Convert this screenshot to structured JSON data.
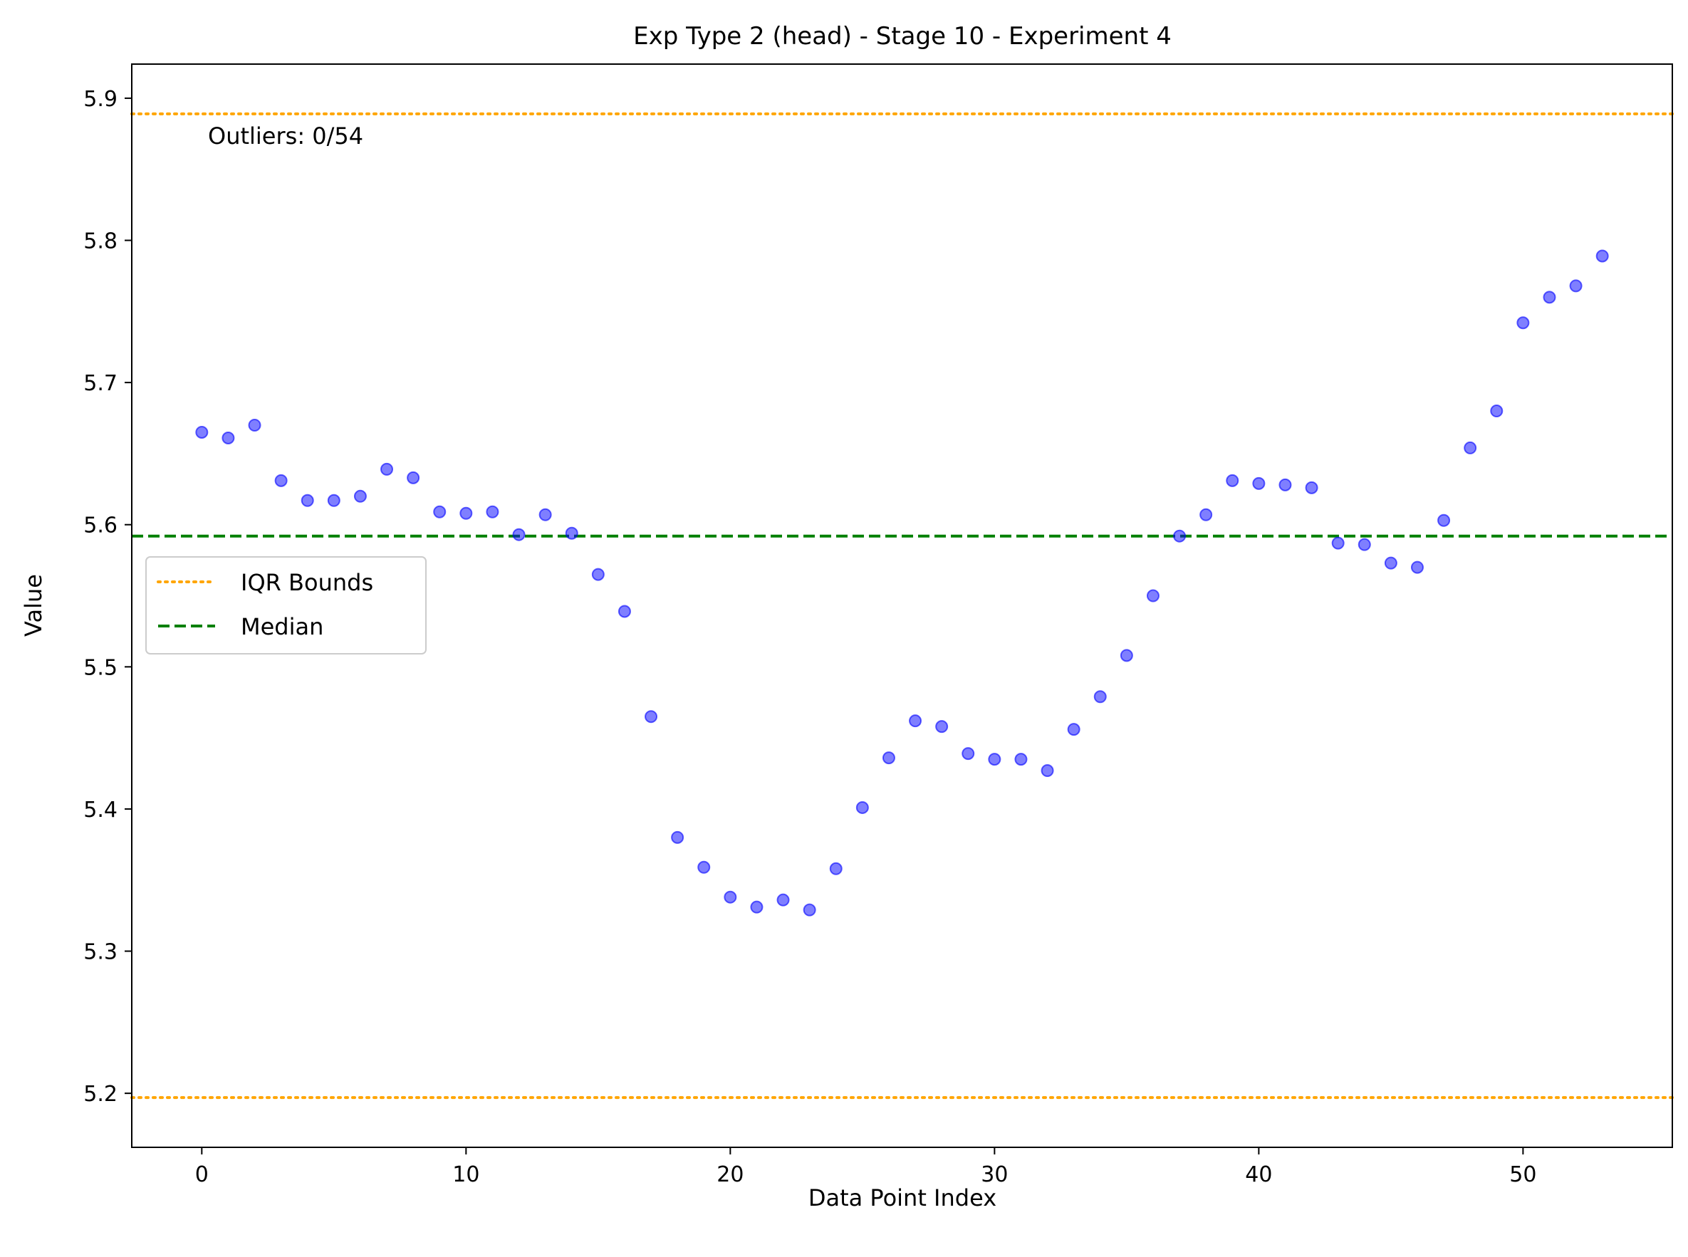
{
  "chart_data": {
    "type": "scatter",
    "title": "Exp Type 2 (head) - Stage 10 - Experiment 4",
    "xlabel": "Data Point Index",
    "ylabel": "Value",
    "xlim": [
      -2.65,
      55.65
    ],
    "ylim": [
      5.162,
      5.924
    ],
    "xticks": [
      0,
      10,
      20,
      30,
      40,
      50
    ],
    "yticks": [
      5.2,
      5.3,
      5.4,
      5.5,
      5.6,
      5.7,
      5.8,
      5.9
    ],
    "grid": false,
    "legend_position": "center-left",
    "legend": [
      "IQR Bounds",
      "Median"
    ],
    "annotation": "Outliers: 0/54",
    "median": 5.592,
    "iqr_bounds": [
      5.197,
      5.889
    ],
    "colors": {
      "points": "#0000ff",
      "iqr": "#ffa500",
      "median": "#008000"
    },
    "series": [
      {
        "x": [
          0,
          1,
          2,
          3,
          4,
          5,
          6,
          7,
          8,
          9,
          10,
          11,
          12,
          13,
          14,
          15,
          16,
          17,
          18,
          19,
          20,
          21,
          22,
          23,
          24,
          25,
          26,
          27,
          28,
          29,
          30,
          31,
          32,
          33,
          34,
          35,
          36,
          37,
          38,
          39,
          40,
          41,
          42,
          43,
          44,
          45,
          46,
          47,
          48,
          49,
          50,
          51,
          52,
          53
        ],
        "values": [
          5.665,
          5.661,
          5.67,
          5.631,
          5.617,
          5.617,
          5.62,
          5.639,
          5.633,
          5.609,
          5.608,
          5.609,
          5.593,
          5.607,
          5.594,
          5.565,
          5.539,
          5.465,
          5.38,
          5.359,
          5.338,
          5.331,
          5.336,
          5.329,
          5.358,
          5.401,
          5.436,
          5.462,
          5.458,
          5.439,
          5.435,
          5.435,
          5.427,
          5.456,
          5.479,
          5.508,
          5.55,
          5.592,
          5.607,
          5.631,
          5.629,
          5.628,
          5.626,
          5.587,
          5.586,
          5.573,
          5.57,
          5.603,
          5.654,
          5.68,
          5.742,
          5.76,
          5.768,
          5.789
        ]
      }
    ]
  }
}
